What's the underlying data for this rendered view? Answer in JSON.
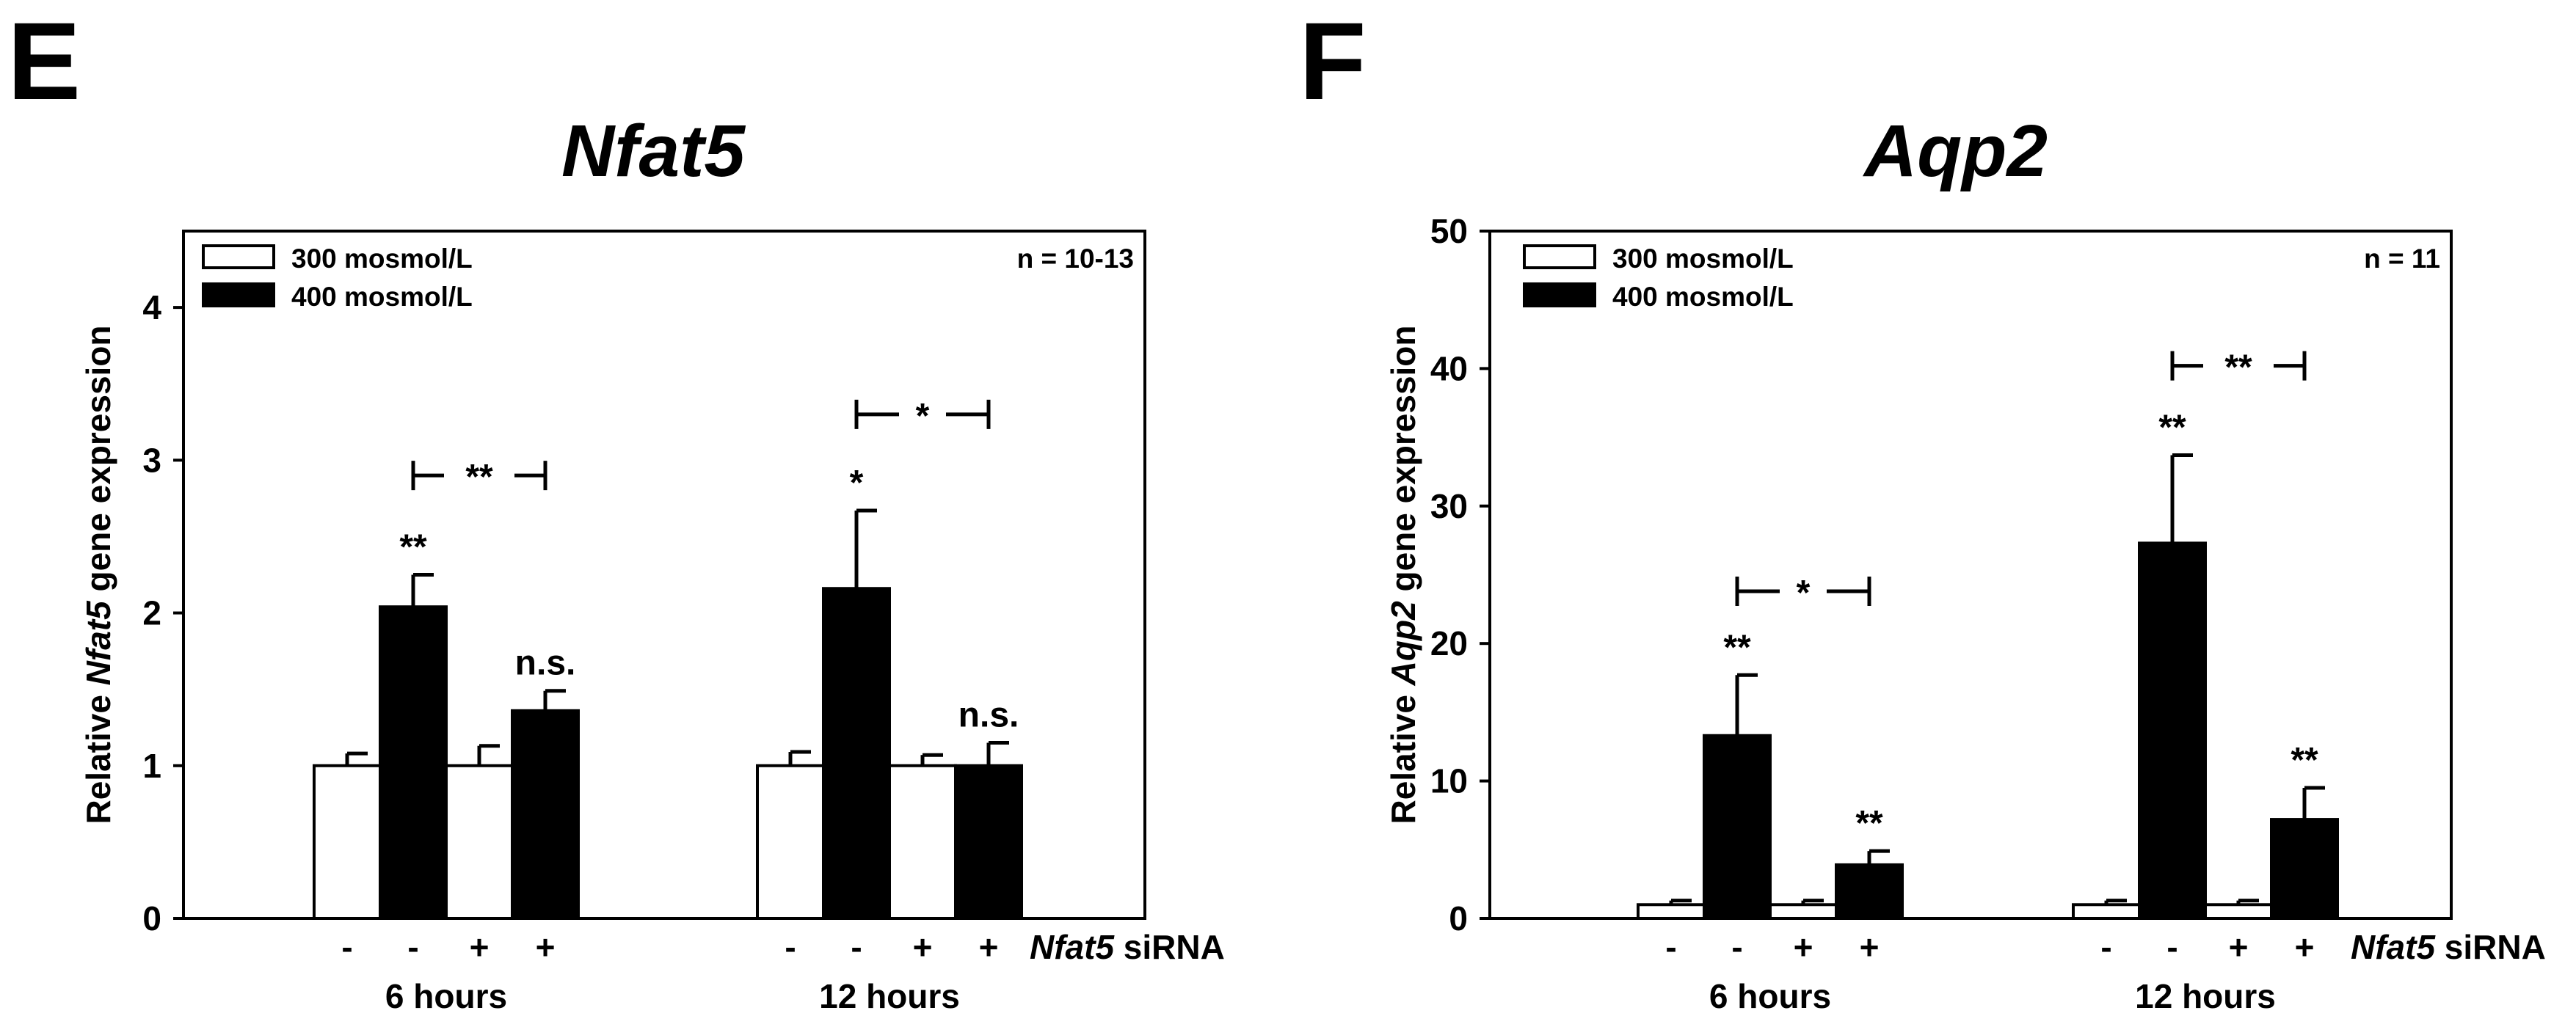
{
  "chart_data": [
    {
      "panel": "E",
      "type": "bar",
      "title": "Nfat5",
      "ylabel_prefix": "Relative ",
      "ylabel_gene": "Nfat5",
      "ylabel_suffix": " gene expression",
      "ylim": [
        0,
        4.5
      ],
      "yticks": [
        "0",
        "1",
        "2",
        "3",
        "4"
      ],
      "n_label": "n = 10-13",
      "legend": [
        "300 mosmol/L",
        "400 mosmol/L"
      ],
      "sirna_gene": "Nfat5",
      "sirna_word": " siRNA",
      "groups": [
        {
          "label": "6 hours",
          "bars": [
            {
              "series": "300 mosmol/L",
              "sirna": "-",
              "value": 1.0,
              "error": 0.08,
              "sig": ""
            },
            {
              "series": "400 mosmol/L",
              "sirna": "-",
              "value": 2.04,
              "error": 0.21,
              "sig": "**"
            },
            {
              "series": "300 mosmol/L",
              "sirna": "+",
              "value": 1.0,
              "error": 0.13,
              "sig": ""
            },
            {
              "series": "400 mosmol/L",
              "sirna": "+",
              "value": 1.36,
              "error": 0.13,
              "sig": "n.s."
            }
          ],
          "bracket": {
            "label": "**",
            "level": 2.9
          }
        },
        {
          "label": "12 hours",
          "bars": [
            {
              "series": "300 mosmol/L",
              "sirna": "-",
              "value": 1.0,
              "error": 0.09,
              "sig": ""
            },
            {
              "series": "400 mosmol/L",
              "sirna": "-",
              "value": 2.16,
              "error": 0.51,
              "sig": "*"
            },
            {
              "series": "300 mosmol/L",
              "sirna": "+",
              "value": 1.0,
              "error": 0.07,
              "sig": ""
            },
            {
              "series": "400 mosmol/L",
              "sirna": "+",
              "value": 1.0,
              "error": 0.15,
              "sig": "n.s."
            }
          ],
          "bracket": {
            "label": "*",
            "level": 3.3
          }
        }
      ]
    },
    {
      "panel": "F",
      "type": "bar",
      "title": "Aqp2",
      "ylabel_prefix": "Relative ",
      "ylabel_gene": "Aqp2",
      "ylabel_suffix": " gene expression",
      "ylim": [
        0,
        50
      ],
      "yticks": [
        "0",
        "10",
        "20",
        "30",
        "40",
        "50"
      ],
      "n_label": "n = 11",
      "legend": [
        "300 mosmol/L",
        "400 mosmol/L"
      ],
      "sirna_gene": "Nfat5",
      "sirna_word": " siRNA",
      "groups": [
        {
          "label": "6 hours",
          "bars": [
            {
              "series": "300 mosmol/L",
              "sirna": "-",
              "value": 1.0,
              "error": 0.3,
              "sig": ""
            },
            {
              "series": "400 mosmol/L",
              "sirna": "-",
              "value": 13.3,
              "error": 4.4,
              "sig": "**"
            },
            {
              "series": "300 mosmol/L",
              "sirna": "+",
              "value": 1.0,
              "error": 0.3,
              "sig": ""
            },
            {
              "series": "400 mosmol/L",
              "sirna": "+",
              "value": 3.9,
              "error": 1.0,
              "sig": "**"
            }
          ],
          "bracket": {
            "label": "*",
            "level": 23.8
          }
        },
        {
          "label": "12 hours",
          "bars": [
            {
              "series": "300 mosmol/L",
              "sirna": "-",
              "value": 1.0,
              "error": 0.3,
              "sig": ""
            },
            {
              "series": "400 mosmol/L",
              "sirna": "-",
              "value": 27.3,
              "error": 6.4,
              "sig": "**"
            },
            {
              "series": "300 mosmol/L",
              "sirna": "+",
              "value": 1.0,
              "error": 0.3,
              "sig": ""
            },
            {
              "series": "400 mosmol/L",
              "sirna": "+",
              "value": 7.2,
              "error": 2.3,
              "sig": "**"
            }
          ],
          "bracket": {
            "label": "**",
            "level": 40.2
          }
        }
      ]
    }
  ]
}
